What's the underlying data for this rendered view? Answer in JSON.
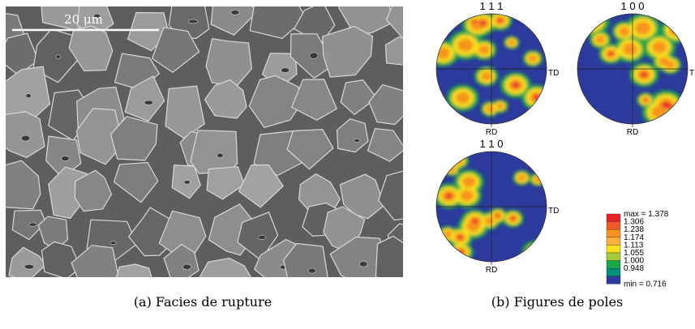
{
  "figure": {
    "panel_a": {
      "scale_bar": "20 μm",
      "caption": "(a) Facies de rupture"
    },
    "panel_b": {
      "pole_figures": [
        {
          "label": "1 1 1",
          "td": "TD",
          "rd": "RD"
        },
        {
          "label": "1 0 0",
          "td": "TD",
          "rd": "RD"
        },
        {
          "label": "1 1 0",
          "td": "TD",
          "rd": "RD"
        }
      ],
      "legend": {
        "max": "max = 1.378",
        "levels": [
          "1.306",
          "1.238",
          "1.174",
          "1.113",
          "1.055",
          "1.000",
          "0.948"
        ],
        "min": "min = 0.716",
        "colors": [
          "#e8202a",
          "#f05a28",
          "#f7941d",
          "#fbb040",
          "#f9e01b",
          "#a6ce39",
          "#1aa64a",
          "#00907a",
          "#2b3a9c"
        ]
      },
      "caption": "(b) Figures de poles"
    }
  }
}
